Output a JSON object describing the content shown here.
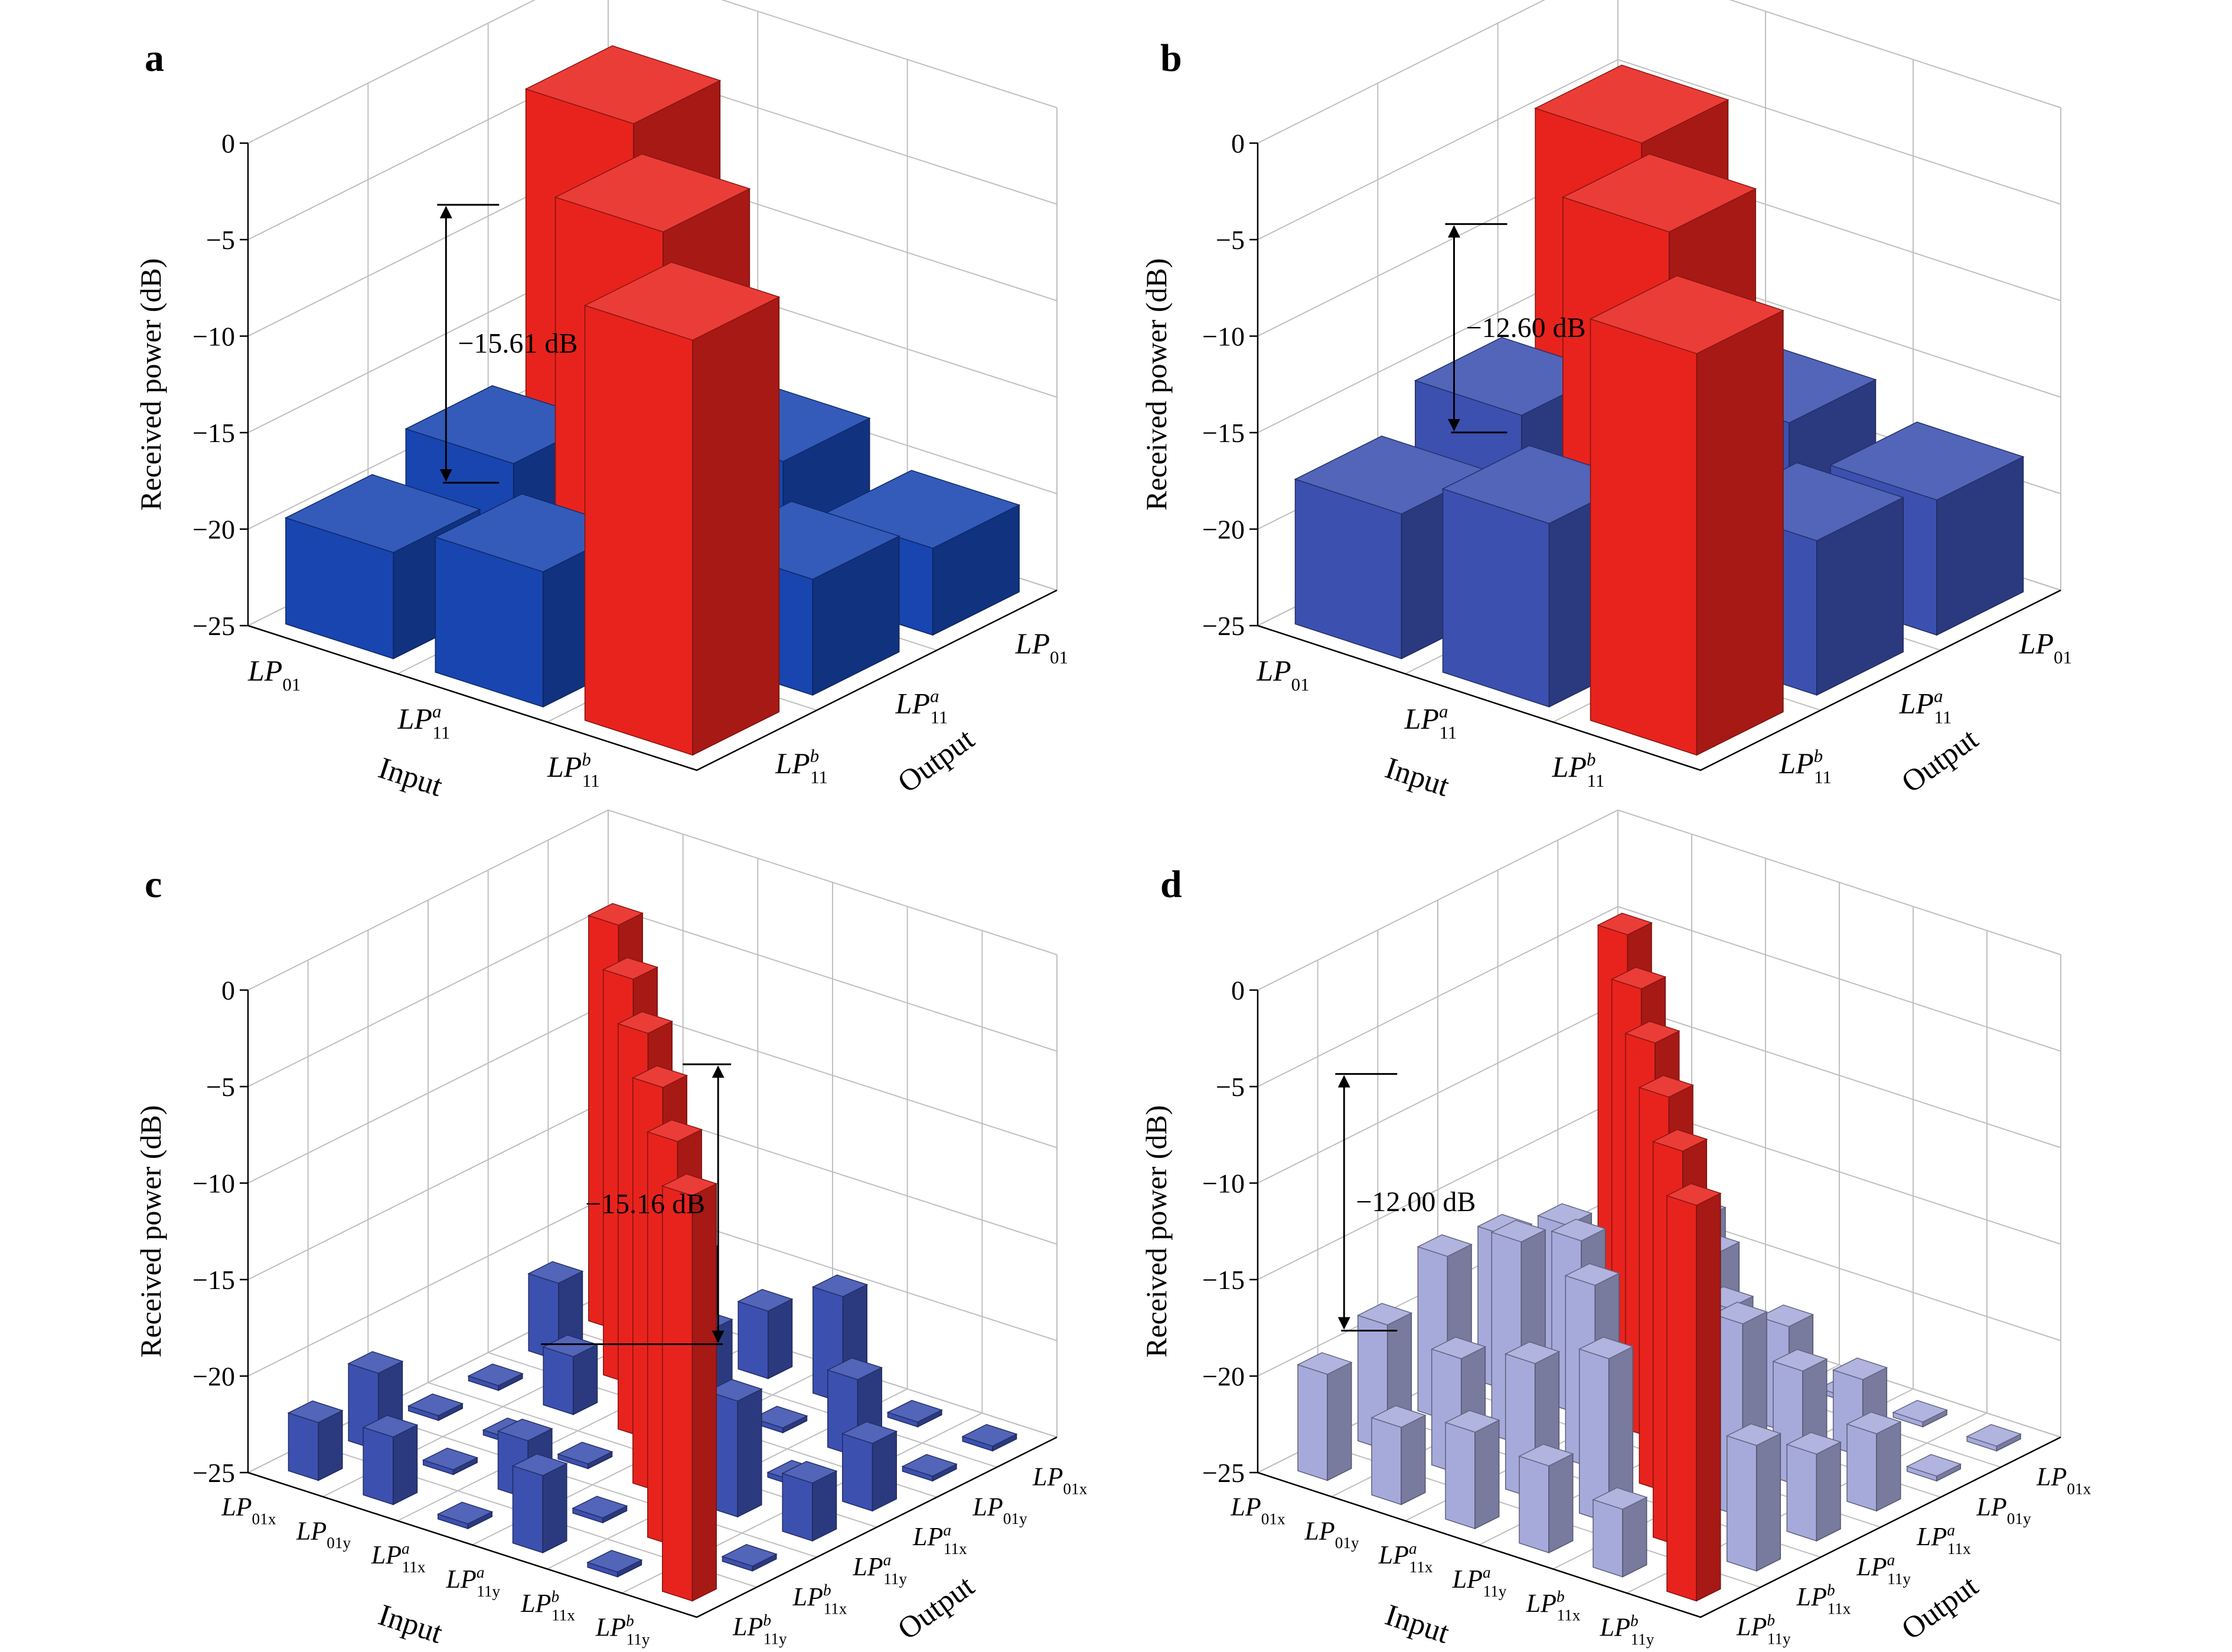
{
  "colors": {
    "diagonal": "#e8231d",
    "crosstalk_dark": "#1845b0",
    "crosstalk_mid": "#3c50b0",
    "crosstalk_light": "#a6aadb",
    "grid": "#bfbfbf",
    "axis": "#000000"
  },
  "chart_data": [
    {
      "type": "bar3d",
      "panel_label": "a",
      "zlabel": "Received power (dB)",
      "zticks": [
        "0",
        "−5",
        "−10",
        "−15",
        "−20",
        "−25"
      ],
      "zlim": [
        -25,
        0
      ],
      "input_label": "Input",
      "output_label": "Output",
      "modes": [
        {
          "base": "LP",
          "sub": "01",
          "sup": ""
        },
        {
          "base": "LP",
          "sub": "11",
          "sup": "a"
        },
        {
          "base": "LP",
          "sub": "11",
          "sup": "b"
        }
      ],
      "annotation": "−15.61 dB",
      "values": [
        [
          -3.5,
          -18.0,
          -19.5
        ],
        [
          -18.5,
          -3.5,
          -18.0
        ],
        [
          -20.5,
          -19.0,
          -3.5
        ]
      ],
      "crosstalk_color": "crosstalk_dark"
    },
    {
      "type": "bar3d",
      "panel_label": "b",
      "zlabel": "Received power (dB)",
      "zticks": [
        "0",
        "−5",
        "−10",
        "−15",
        "−20",
        "−25"
      ],
      "zlim": [
        -25,
        0
      ],
      "input_label": "Input",
      "output_label": "Output",
      "modes": [
        {
          "base": "LP",
          "sub": "01",
          "sup": ""
        },
        {
          "base": "LP",
          "sub": "11",
          "sup": "a"
        },
        {
          "base": "LP",
          "sub": "11",
          "sup": "b"
        }
      ],
      "annotation": "−12.60 dB",
      "values": [
        [
          -4.5,
          -15.5,
          -17.5
        ],
        [
          -16.5,
          -3.5,
          -15.5
        ],
        [
          -18.0,
          -17.0,
          -4.2
        ]
      ],
      "crosstalk_color": "crosstalk_mid"
    },
    {
      "type": "bar3d",
      "panel_label": "c",
      "zlabel": "Received power (dB)",
      "zticks": [
        "0",
        "−5",
        "−10",
        "−15",
        "−20",
        "−25"
      ],
      "zlim": [
        -25,
        0
      ],
      "input_label": "Input",
      "output_label": "Output",
      "modes": [
        {
          "base": "LP",
          "sub": "01x",
          "sup": ""
        },
        {
          "base": "LP",
          "sub": "01y",
          "sup": ""
        },
        {
          "base": "LP",
          "sub": "11x",
          "sup": "a"
        },
        {
          "base": "LP",
          "sub": "11y",
          "sup": "a"
        },
        {
          "base": "LP",
          "sub": "11x",
          "sup": "b"
        },
        {
          "base": "LP",
          "sub": "11y",
          "sup": "b"
        }
      ],
      "annotation": "−15.16 dB",
      "values": [
        [
          -4.0,
          -21.0,
          -25.0,
          -25.0,
          -21.0,
          -22.0
        ],
        [
          -20.0,
          -4.0,
          -22.0,
          -25.0,
          -25.0,
          -21.5
        ],
        [
          -21.5,
          -21.0,
          -4.0,
          -25.0,
          -22.0,
          -25.0
        ],
        [
          -19.5,
          -25.0,
          -22.5,
          -4.0,
          -25.0,
          -21.0
        ],
        [
          -25.0,
          -21.0,
          -25.0,
          -19.0,
          -4.0,
          -25.0
        ],
        [
          -25.0,
          -25.0,
          -21.5,
          -22.0,
          -25.0,
          -4.0
        ]
      ],
      "crosstalk_color": "crosstalk_mid"
    },
    {
      "type": "bar3d",
      "panel_label": "d",
      "zlabel": "Received power (dB)",
      "zticks": [
        "0",
        "−5",
        "−10",
        "−15",
        "−20",
        "−25"
      ],
      "zlim": [
        -25,
        0
      ],
      "input_label": "Input",
      "output_label": "Output",
      "modes": [
        {
          "base": "LP",
          "sub": "01x",
          "sup": ""
        },
        {
          "base": "LP",
          "sub": "01y",
          "sup": ""
        },
        {
          "base": "LP",
          "sub": "11x",
          "sup": "a"
        },
        {
          "base": "LP",
          "sub": "11y",
          "sup": "a"
        },
        {
          "base": "LP",
          "sub": "11x",
          "sup": "b"
        },
        {
          "base": "LP",
          "sub": "11y",
          "sup": "b"
        }
      ],
      "annotation": "−12.00 dB",
      "values": [
        [
          -4.5,
          -18.0,
          -17.0,
          -16.5,
          -18.5,
          -19.5
        ],
        [
          -18.0,
          -4.5,
          -16.0,
          -14.5,
          -19.0,
          -21.0
        ],
        [
          -25.0,
          -17.0,
          -4.5,
          -15.5,
          -18.0,
          -20.0
        ],
        [
          -25.0,
          -19.5,
          -17.0,
          -4.5,
          -16.5,
          -20.5
        ],
        [
          -25.0,
          -21.0,
          -19.0,
          -15.0,
          -4.5,
          -21.5
        ],
        [
          -25.0,
          -25.0,
          -21.0,
          -20.5,
          -18.5,
          -4.5
        ]
      ],
      "crosstalk_color": "crosstalk_light"
    }
  ]
}
